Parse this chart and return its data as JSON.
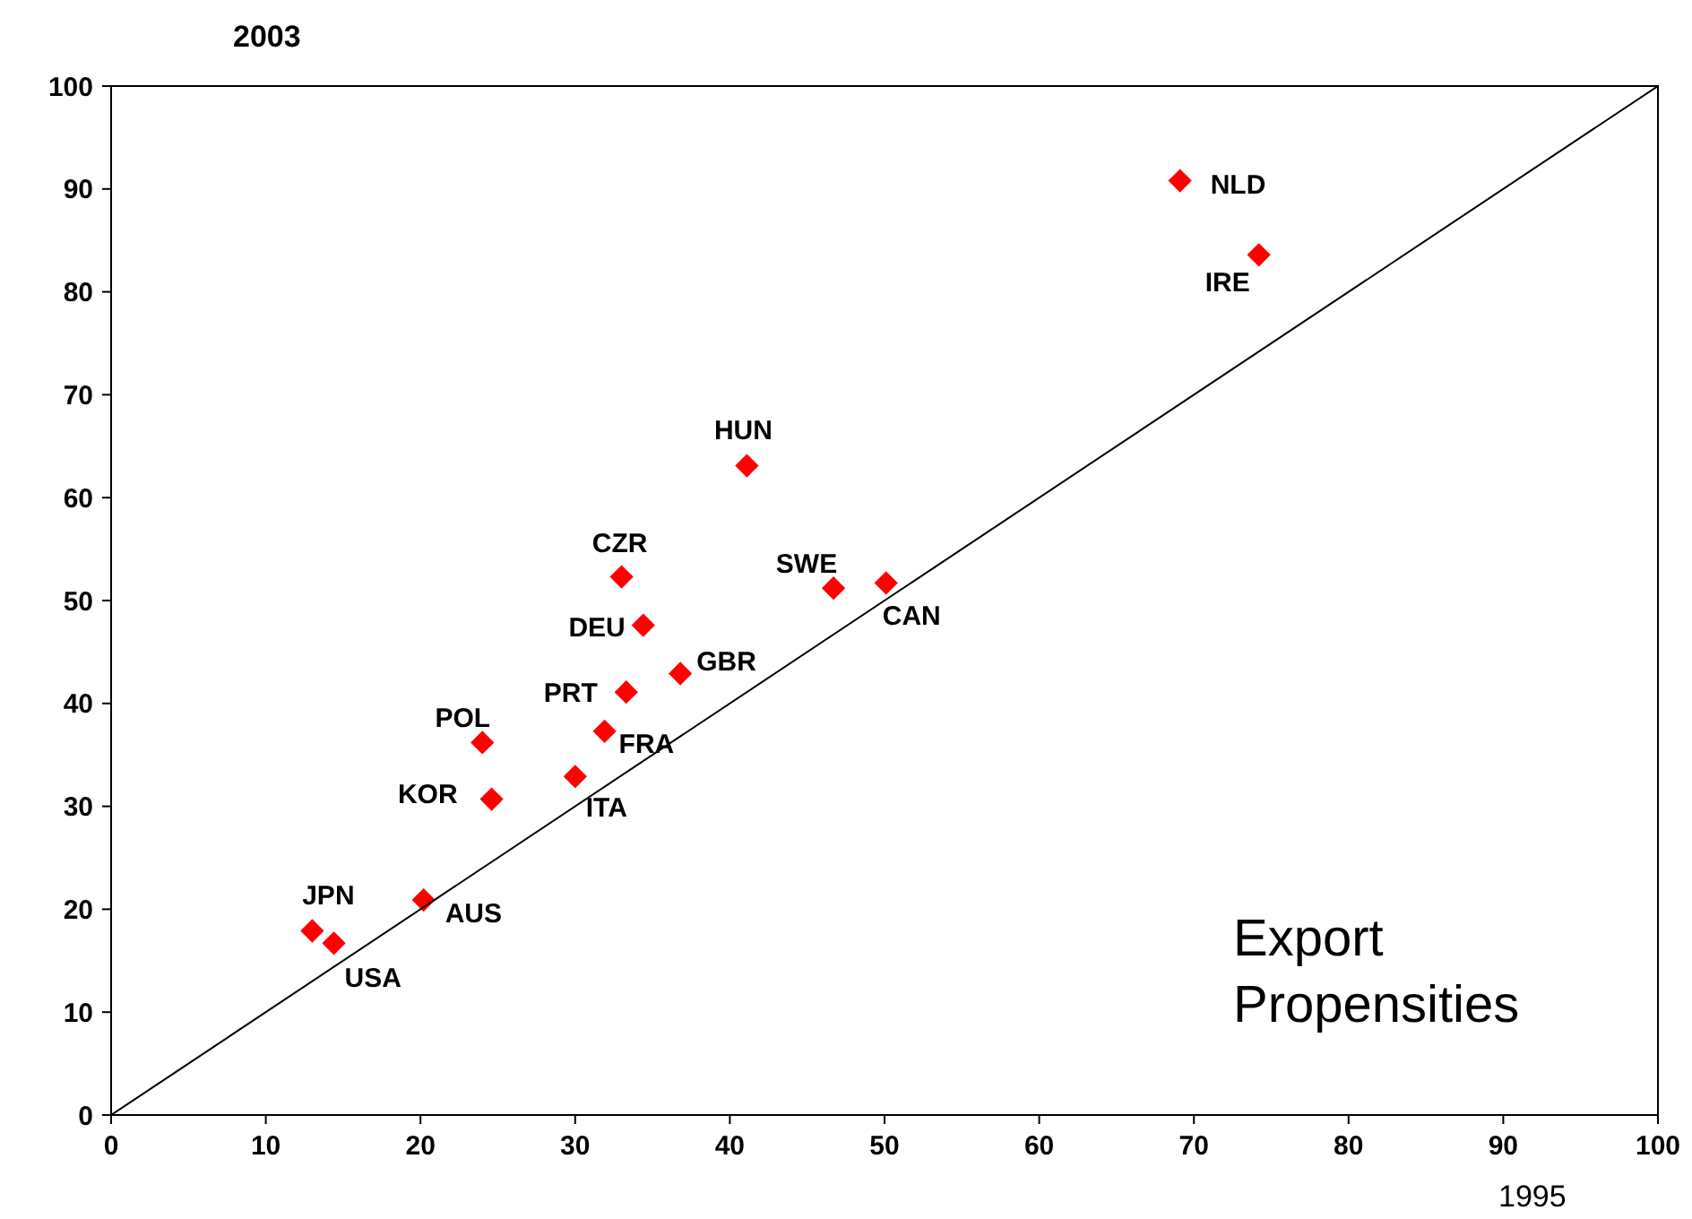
{
  "chart_data": {
    "type": "scatter",
    "ylabel": "2003",
    "xlabel": "1995",
    "xlim": [
      0,
      100
    ],
    "ylim": [
      0,
      100
    ],
    "xticks": [
      0,
      10,
      20,
      30,
      40,
      50,
      60,
      70,
      80,
      90,
      100
    ],
    "yticks": [
      0,
      10,
      20,
      30,
      40,
      50,
      60,
      70,
      80,
      90,
      100
    ],
    "grid": false,
    "marker": "diamond",
    "series": [
      {
        "color": "#ff0000",
        "x": [
          69.1,
          74.2,
          41.1,
          33.0,
          46.7,
          50.1,
          34.4,
          36.8,
          33.3,
          31.9,
          24.0,
          24.6,
          30.0,
          20.2,
          13.0,
          14.4
        ],
        "values": [
          90.8,
          83.6,
          63.1,
          52.3,
          51.2,
          51.7,
          47.6,
          42.9,
          41.1,
          37.3,
          36.2,
          30.7,
          32.9,
          20.9,
          17.9,
          16.7
        ]
      },
      {
        "type": "line",
        "color": "#000000",
        "x": [
          0,
          100
        ],
        "values": [
          0,
          100
        ],
        "line_style": "solid",
        "marker": "none"
      }
    ],
    "annotations": [
      {
        "text": "NLD",
        "x": 69.1,
        "y": 90.8
      },
      {
        "text": "IRE",
        "x": 74.2,
        "y": 83.6
      },
      {
        "text": "HUN",
        "x": 41.1,
        "y": 63.1
      },
      {
        "text": "CZR",
        "x": 33.0,
        "y": 52.3
      },
      {
        "text": "SWE",
        "x": 46.7,
        "y": 51.2
      },
      {
        "text": "CAN",
        "x": 50.1,
        "y": 51.7
      },
      {
        "text": "DEU",
        "x": 34.4,
        "y": 47.6
      },
      {
        "text": "GBR",
        "x": 36.8,
        "y": 42.9
      },
      {
        "text": "PRT",
        "x": 33.3,
        "y": 41.1
      },
      {
        "text": "FRA",
        "x": 31.9,
        "y": 37.3
      },
      {
        "text": "POL",
        "x": 24.0,
        "y": 36.2
      },
      {
        "text": "KOR",
        "x": 24.6,
        "y": 30.7
      },
      {
        "text": "ITA",
        "x": 30.0,
        "y": 32.9
      },
      {
        "text": "AUS",
        "x": 20.2,
        "y": 20.9
      },
      {
        "text": "JPN",
        "x": 13.0,
        "y": 17.9
      },
      {
        "text": "USA",
        "x": 14.4,
        "y": 16.7
      },
      "Export Propensities"
    ]
  }
}
